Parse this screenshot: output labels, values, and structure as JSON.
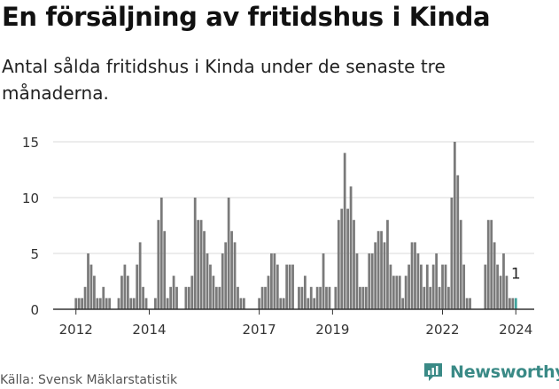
{
  "title": "En försäljning av fritidshus i Kinda",
  "subtitle": "Antal sålda fritidshus i Kinda under de senaste tre månaderna.",
  "source": "Källa: Svensk Mäklarstatistik",
  "brand": {
    "name": "Newsworthy",
    "icon": "newsworthy-chart-icon"
  },
  "chart_data": {
    "type": "bar",
    "title": "En försäljning av fritidshus i Kinda",
    "ylabel": "",
    "xlabel": "",
    "ylim": [
      0,
      15
    ],
    "yticks": [
      0,
      5,
      10,
      15
    ],
    "grid": true,
    "colors": {
      "bar": "#7a7a7a",
      "highlight": "#3fa39d",
      "grid": "#d9d9d9",
      "axis": "#333333"
    },
    "x_start": "2012-01",
    "x_end": "2024-02",
    "xticks": [
      {
        "label": "2012",
        "month": "2012-01"
      },
      {
        "label": "2014",
        "month": "2014-01"
      },
      {
        "label": "2017",
        "month": "2017-01"
      },
      {
        "label": "2019",
        "month": "2019-01"
      },
      {
        "label": "2022",
        "month": "2022-01"
      },
      {
        "label": "2024",
        "month": "2024-01"
      }
    ],
    "series": [
      {
        "name": "Antal sålda fritidshus (rullande 3 månader)",
        "values": [
          1,
          1,
          1,
          2,
          5,
          4,
          3,
          1,
          1,
          2,
          1,
          1,
          null,
          null,
          1,
          3,
          4,
          3,
          1,
          1,
          4,
          6,
          2,
          1,
          null,
          null,
          1,
          8,
          10,
          7,
          1,
          2,
          3,
          2,
          null,
          null,
          2,
          2,
          3,
          10,
          8,
          8,
          7,
          5,
          4,
          3,
          2,
          2,
          5,
          6,
          10,
          7,
          6,
          2,
          1,
          1,
          null,
          null,
          null,
          null,
          1,
          2,
          2,
          3,
          5,
          5,
          4,
          1,
          1,
          4,
          4,
          4,
          null,
          2,
          2,
          3,
          1,
          2,
          1,
          2,
          2,
          5,
          2,
          2,
          null,
          2,
          8,
          9,
          14,
          9,
          11,
          8,
          5,
          2,
          2,
          2,
          5,
          5,
          6,
          7,
          7,
          6,
          8,
          4,
          3,
          3,
          3,
          1,
          3,
          4,
          6,
          6,
          5,
          4,
          2,
          4,
          2,
          4,
          5,
          2,
          4,
          4,
          2,
          10,
          15,
          12,
          8,
          4,
          1,
          1,
          null,
          null,
          null,
          null,
          4,
          8,
          8,
          6,
          4,
          3,
          5,
          3,
          1,
          1,
          1
        ],
        "last_value_label": "1"
      }
    ]
  }
}
